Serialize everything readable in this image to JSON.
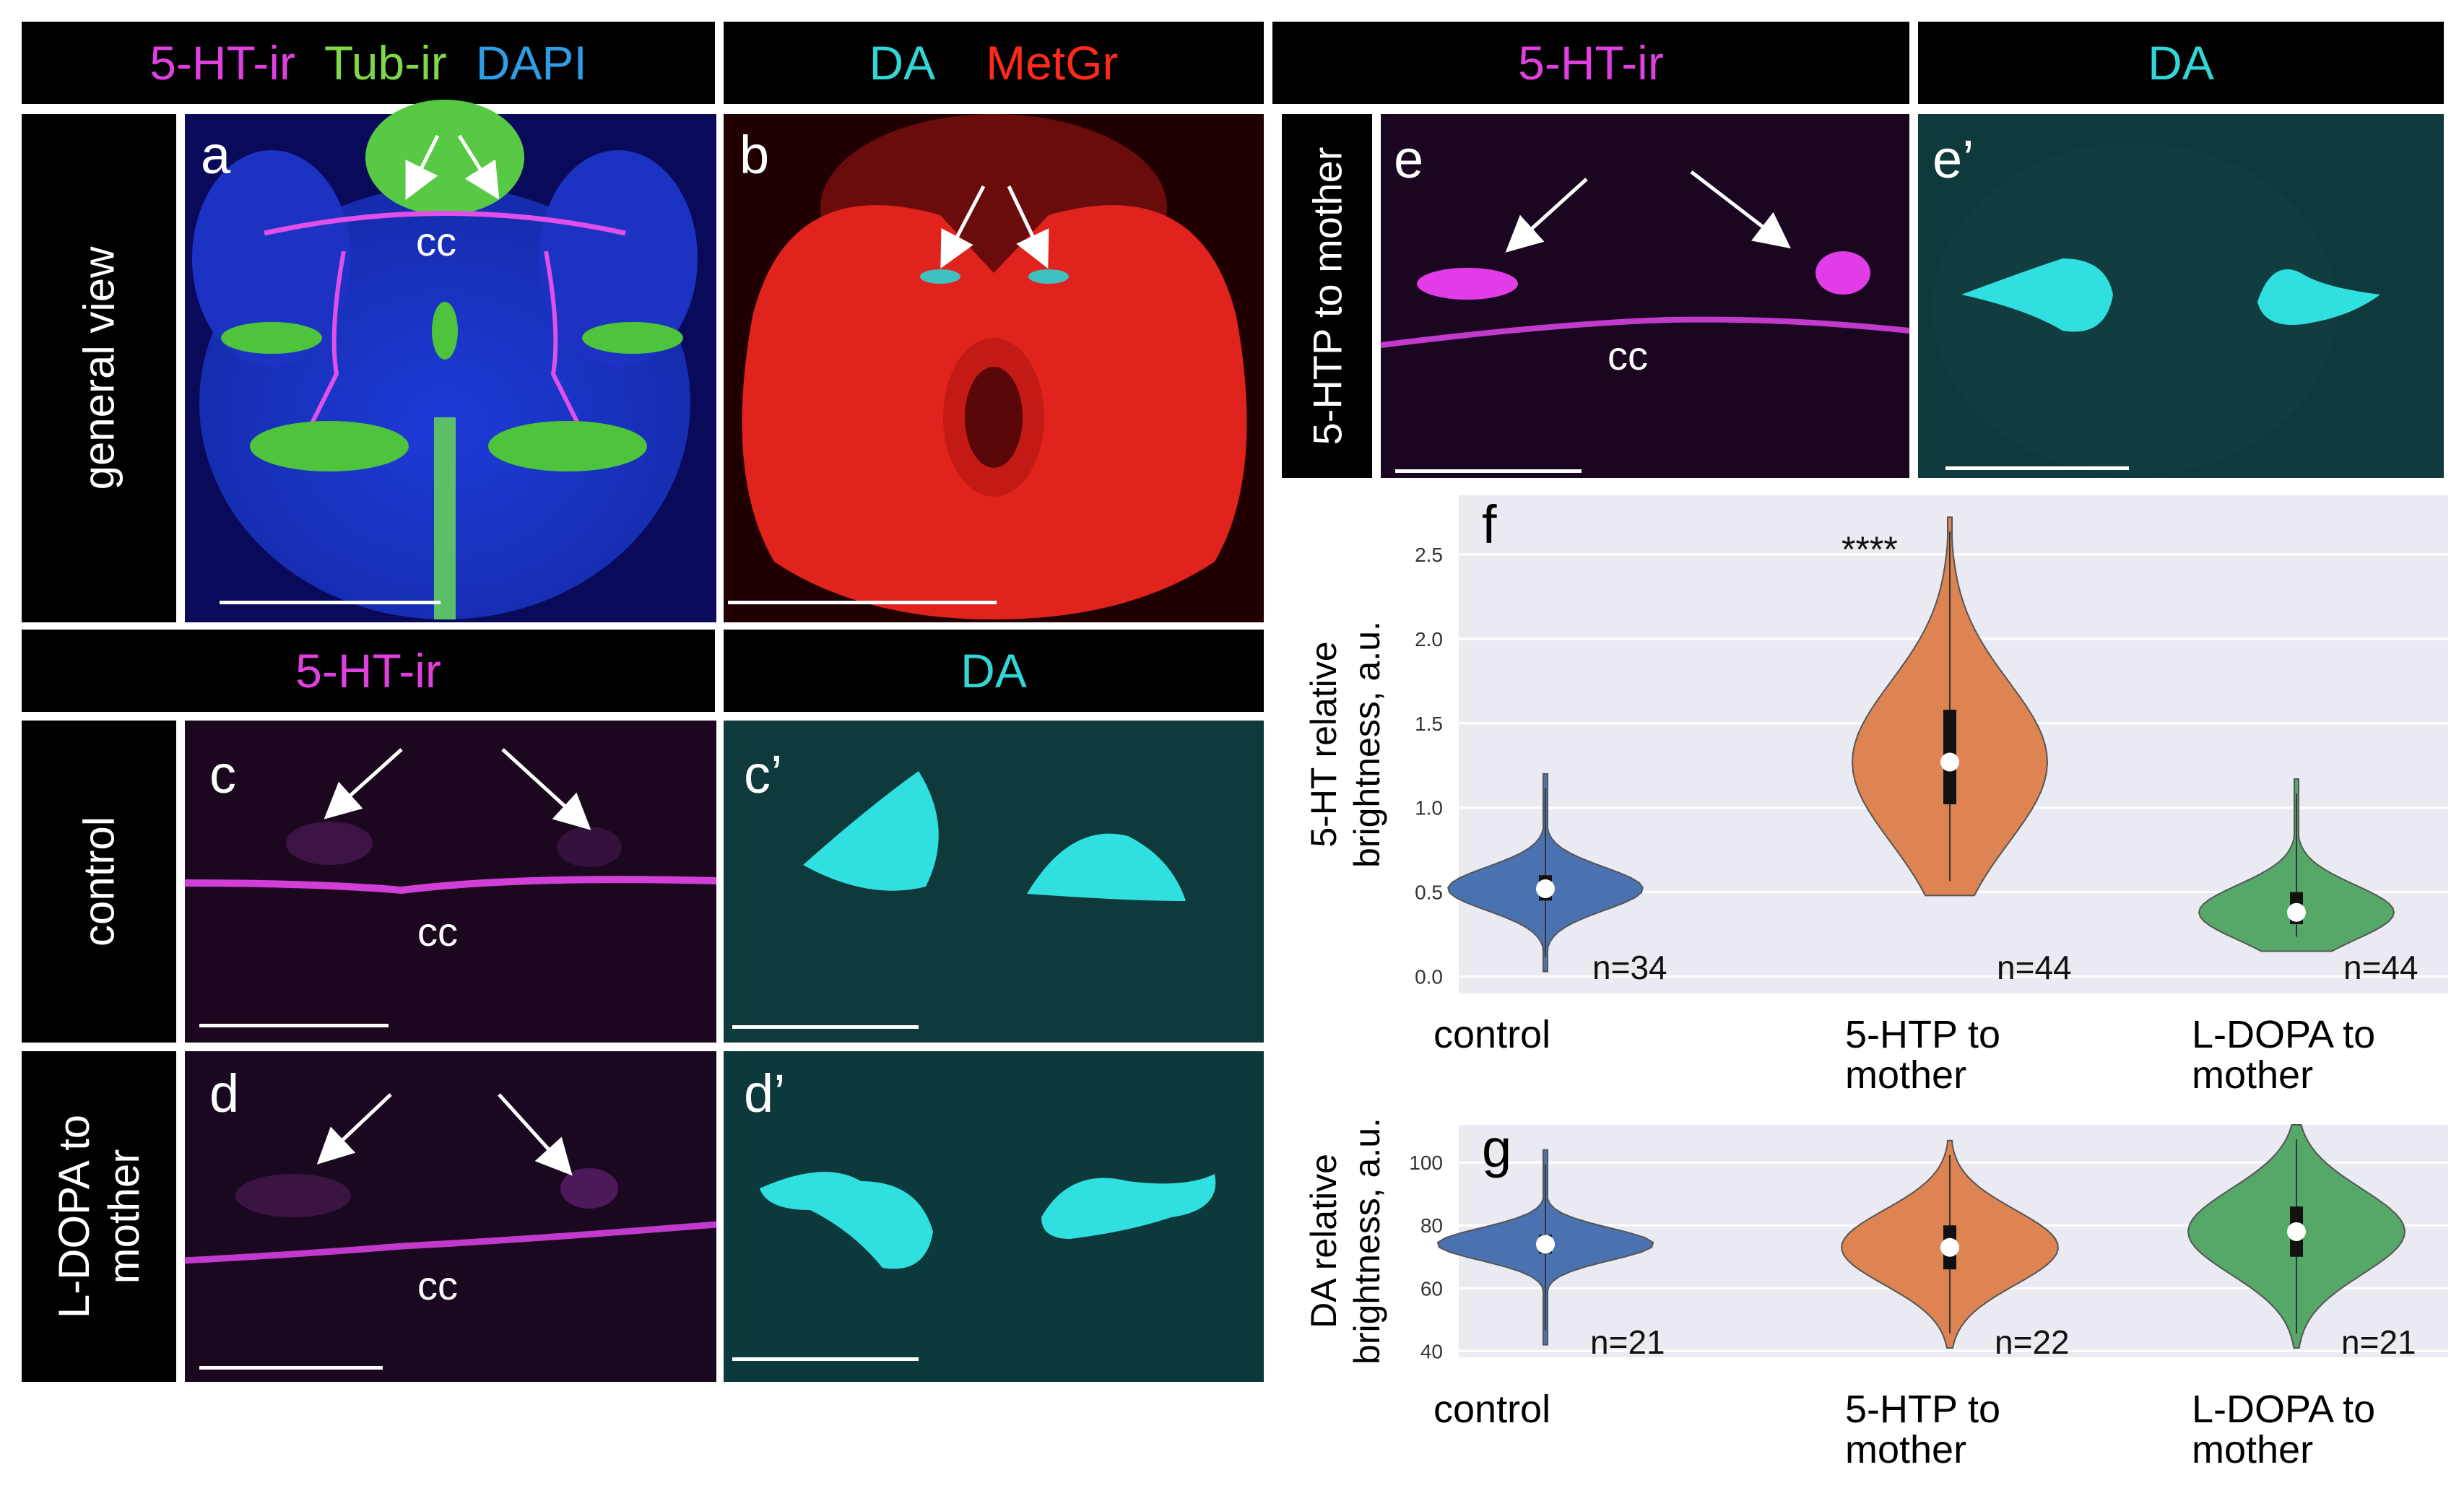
{
  "headers": {
    "top_left": [
      {
        "text": "5-HT-ir",
        "color": "#e040e0"
      },
      {
        "text": "Tub-ir",
        "color": "#7ed84a"
      },
      {
        "text": "DAPI",
        "color": "#2e9fe6"
      }
    ],
    "top_mid": [
      {
        "text": "DA",
        "color": "#33d6d6"
      },
      {
        "text": "MetGr",
        "color": "#ff2a1a"
      }
    ],
    "top_e": {
      "text": "5-HT-ir",
      "color": "#e040e0"
    },
    "top_e2": {
      "text": "DA",
      "color": "#33d6d6"
    },
    "row2_left": {
      "text": "5-HT-ir",
      "color": "#e040e0"
    },
    "row2_mid": {
      "text": "DA",
      "color": "#33d6d6"
    }
  },
  "side_labels": {
    "a": "general view",
    "c": "control",
    "d": "L-DOPA  to mother",
    "e": "5-HTP to mother"
  },
  "panel_labels": {
    "a": "a",
    "b": "b",
    "c": "c",
    "c2": "c’",
    "d": "d",
    "d2": "d’",
    "e": "e",
    "e2": "e’",
    "f": "f",
    "g": "g"
  },
  "cc_label": "cc",
  "colors": {
    "control": "#4a72b0",
    "htp": "#dd8452",
    "ldopa": "#55a868",
    "plot_bg": "#eaeaf2"
  },
  "chart_data": [
    {
      "type": "violin",
      "panel": "f",
      "ylabel": "5-HT relative brightness, a.u.",
      "ylim": [
        -0.1,
        2.85
      ],
      "yticks": [
        "0.0",
        "0.5",
        "1.0",
        "1.5",
        "2.0",
        "2.5"
      ],
      "categories": [
        "control",
        "5-HTP to mother",
        "L-DOPA to mother"
      ],
      "series": [
        {
          "category": "control",
          "median": 0.52,
          "q1": 0.45,
          "q3": 0.6,
          "min": 0.03,
          "max": 1.2,
          "n": "n=34"
        },
        {
          "category": "5-HTP to mother",
          "median": 1.27,
          "q1": 1.02,
          "q3": 1.58,
          "min": 0.48,
          "max": 2.72,
          "n": "n=44"
        },
        {
          "category": "L-DOPA to mother",
          "median": 0.38,
          "q1": 0.31,
          "q3": 0.5,
          "min": 0.15,
          "max": 1.17,
          "n": "n=44"
        }
      ],
      "annotation": "****"
    },
    {
      "type": "violin",
      "panel": "g",
      "ylabel": "DA relative brightness, a.u.",
      "ylim": [
        38,
        112
      ],
      "yticks": [
        "40",
        "60",
        "80",
        "100"
      ],
      "categories": [
        "control",
        "5-HTP to mother",
        "L-DOPA to mother"
      ],
      "series": [
        {
          "category": "control",
          "median": 74,
          "q1": 71,
          "q3": 77,
          "min": 42,
          "max": 104,
          "n": "n=21"
        },
        {
          "category": "5-HTP to mother",
          "median": 73,
          "q1": 66,
          "q3": 80,
          "min": 41,
          "max": 107,
          "n": "n=22"
        },
        {
          "category": "L-DOPA to mother",
          "median": 78,
          "q1": 70,
          "q3": 86,
          "min": 41,
          "max": 112,
          "n": "n=21"
        }
      ]
    }
  ]
}
